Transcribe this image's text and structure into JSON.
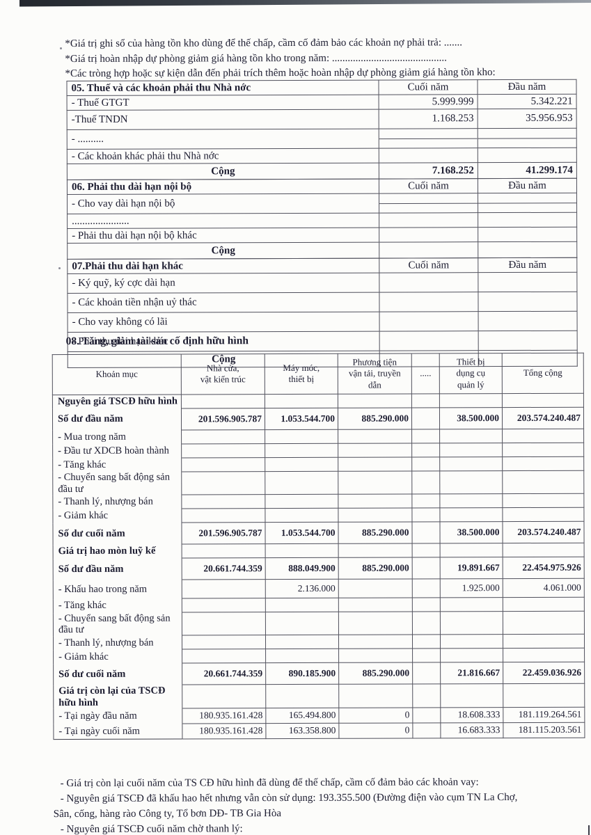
{
  "intro": {
    "line1": "*Giá trị ghi sổ của hàng tồn kho dùng để thế chấp, cầm cố đảm bảo các khoản nợ phải trả: .......",
    "line2": "*Giá trị hoàn nhập dự phòng giảm giá hàng tồn kho trong năm: ............................................",
    "line3": "*Các tròng hợp hoặc sự kiện dẫn đến phải trích thêm hoặc hoàn nhập dự phòng giảm giá hàng tồn kho:"
  },
  "small_tables": [
    {
      "title": "05. Thuế và các khoản phải thu Nhà nớc",
      "col_end": "Cuối năm",
      "col_begin": "Đầu năm",
      "rows": [
        {
          "label": "- Thuế GTGT",
          "end": "5.999.999",
          "begin": "5.342.221"
        },
        {
          "label": "-Thuế TNDN",
          "end": "1.168.253",
          "begin": "35.956.953",
          "tall": true
        },
        {
          "label": "- ..........",
          "end": "",
          "begin": "",
          "split": true,
          "tall": true
        },
        {
          "label": "- Các khoản khác phải thu Nhà nớc",
          "end": "",
          "begin": ""
        }
      ],
      "total_label": "Cộng",
      "total_end": "7.168.252",
      "total_begin": "41.299.174"
    },
    {
      "title": "06. Phải thu dài hạn nội bộ",
      "col_end": "Cuối năm",
      "col_begin": "Đầu năm",
      "rows": [
        {
          "label": "- Cho vay dài hạn nội bộ",
          "end": "",
          "begin": "",
          "split": true,
          "tall": true
        },
        {
          "label": "......................",
          "end": "",
          "begin": ""
        },
        {
          "label": "- Phải thu dài hạn nội bộ khác",
          "end": "",
          "begin": ""
        }
      ],
      "total_label": "Cộng",
      "total_end": "",
      "total_begin": ""
    },
    {
      "title": "07.Phải thu dài hạn khác",
      "col_end": "Cuối năm",
      "col_begin": "Đầu năm",
      "rows": [
        {
          "label": "- Ký quỹ, ký cợc dài hạn",
          "end": "",
          "begin": "",
          "tall": true
        },
        {
          "label": "- Các khoản tiền nhận uỷ thác",
          "end": "",
          "begin": "",
          "tall": true
        },
        {
          "label": "- Cho vay không có lãi",
          "end": "",
          "begin": "",
          "tall": true
        },
        {
          "label": "- Phải thu dài hạn khác",
          "end": "",
          "begin": "",
          "tall": true
        }
      ],
      "total_label": "Cộng",
      "total_end": "",
      "total_begin": ""
    }
  ],
  "section08": {
    "heading": "08. Tăng, giảm tài sản cố định hữu hình",
    "columns": [
      "Khoản mục",
      "Nhà cửa,\nvật kiến trúc",
      "Máy móc,\nthiết bị",
      "Phương tiện\nvận tải, truyền\ndẫn",
      ".....",
      "Thiết bị\ndụng cụ\nquản lý",
      "Tổng cộng"
    ],
    "rows": [
      {
        "label": "Nguyên giá TSCĐ hữu hình",
        "bold": true,
        "values": [
          "",
          "",
          "",
          "",
          "",
          ""
        ]
      },
      {
        "label": "Số dư đầu năm",
        "bold": true,
        "vals": true,
        "values": [
          "201.596.905.787",
          "1.053.544.700",
          "885.290.000",
          "",
          "38.500.000",
          "203.574.240.487"
        ]
      },
      {
        "label": "- Mua trong năm",
        "values": [
          "",
          "",
          "",
          "",
          "",
          ""
        ]
      },
      {
        "label": "- Đầu tư XDCB hoàn thành",
        "values": [
          "",
          "",
          "",
          "",
          "",
          ""
        ]
      },
      {
        "label": "- Tăng khác",
        "values": [
          "",
          "",
          "",
          "",
          "",
          ""
        ]
      },
      {
        "label": "- Chuyển sang bất động sản đầu tư",
        "values": [
          "",
          "",
          "",
          "",
          "",
          ""
        ]
      },
      {
        "label": "- Thanh lý, nhượng bán",
        "values": [
          "",
          "",
          "",
          "",
          "",
          ""
        ]
      },
      {
        "label": "- Giảm khác",
        "values": [
          "",
          "",
          "",
          "",
          "",
          ""
        ]
      },
      {
        "label": "Số dư cuối năm",
        "bold": true,
        "vals": true,
        "values": [
          "201.596.905.787",
          "1.053.544.700",
          "885.290.000",
          "",
          "38.500.000",
          "203.574.240.487"
        ]
      },
      {
        "label": "Giá trị hao mòn luỹ kế",
        "bold": true,
        "values": [
          "",
          "",
          "",
          "",
          "",
          ""
        ]
      },
      {
        "label": "Số dư đầu năm",
        "bold": true,
        "vals": true,
        "values": [
          "20.661.744.359",
          "888.049.900",
          "885.290.000",
          "",
          "19.891.667",
          "22.454.975.926"
        ]
      },
      {
        "label": "- Khấu hao trong năm",
        "kh": true,
        "values": [
          "",
          "2.136.000",
          "",
          "",
          "1.925.000",
          "4.061.000"
        ]
      },
      {
        "label": "- Tăng khác",
        "values": [
          "",
          "",
          "",
          "",
          "",
          ""
        ]
      },
      {
        "label": "- Chuyển sang bất động sản đầu tư",
        "values": [
          "",
          "",
          "",
          "",
          "",
          ""
        ]
      },
      {
        "label": "- Thanh lý, nhượng bán",
        "values": [
          "",
          "",
          "",
          "",
          "",
          ""
        ]
      },
      {
        "label": "- Giảm khác",
        "values": [
          "",
          "",
          "",
          "",
          "",
          ""
        ]
      },
      {
        "label": "Số dư cuối năm",
        "bold": true,
        "vals": true,
        "values": [
          "20.661.744.359",
          "890.185.900",
          "885.290.000",
          "",
          "21.816.667",
          "22.459.036.926"
        ]
      },
      {
        "label": "Giá trị còn lại của TSCĐ hữu hình",
        "bold": true,
        "values": [
          "",
          "",
          "",
          "",
          "",
          ""
        ]
      },
      {
        "label": "- Tại ngày đầu năm",
        "last": true,
        "values": [
          "180.935.161.428",
          "165.494.800",
          "0",
          "",
          "18.608.333",
          "181.119.264.561"
        ]
      },
      {
        "label": "- Tại ngày cuối năm",
        "last": true,
        "values": [
          "180.935.161.428",
          "163.358.800",
          "0",
          "",
          "16.683.333",
          "181.115.203.561"
        ]
      }
    ]
  },
  "footer": {
    "line1": "- Giá trị còn lại cuối năm của TS CĐ hữu hình đã dùng để thế chấp, cầm cố đảm bảo các khoản vay:",
    "line2": "- Nguyên giá TSCĐ đã khấu hao hết nhưng vẫn còn sử dụng: 193.355.500 (Đường điện vào cụm TN La Chợ,",
    "line3": "Sân, cống, hàng rào Công ty, Tổ bơn DĐ- TB Gia Hòa",
    "line4": "- Nguyên giá TSCĐ cuối năm chờ thanh lý:"
  }
}
